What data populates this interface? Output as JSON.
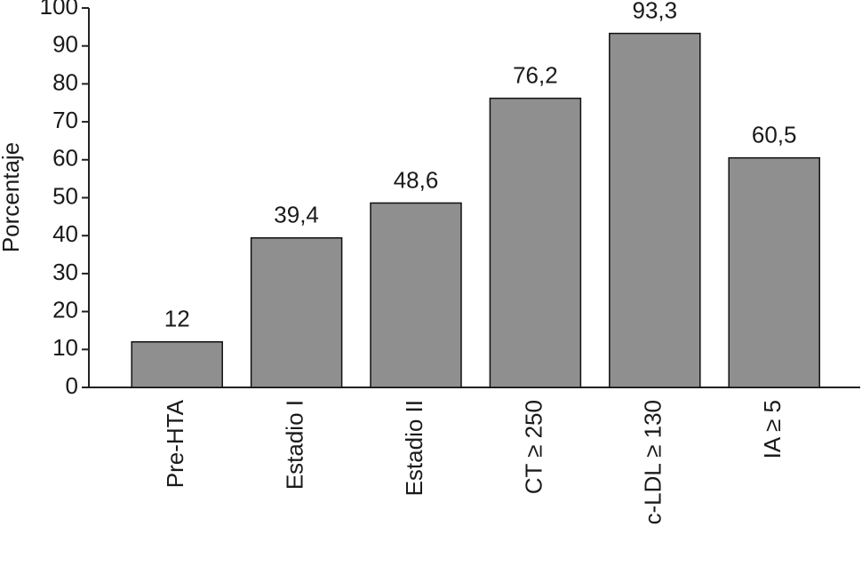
{
  "chart_data": {
    "type": "bar",
    "y_label": "Porcentaje",
    "categories": [
      "Pre-HTA",
      "Estadio I",
      "Estadio II",
      "CT ≥ 250",
      "c-LDL ≥ 130",
      "IA ≥ 5"
    ],
    "values": [
      12,
      39.4,
      48.6,
      76.2,
      93.3,
      60.5
    ],
    "value_labels": [
      "12",
      "39,4",
      "48,6",
      "76,2",
      "93,3",
      "60,5"
    ],
    "color": "#8f8f8f",
    "ylim": [
      0,
      100
    ],
    "yticks": [
      0,
      10,
      20,
      30,
      40,
      50,
      60,
      70,
      80,
      90,
      100
    ],
    "grid": false
  }
}
